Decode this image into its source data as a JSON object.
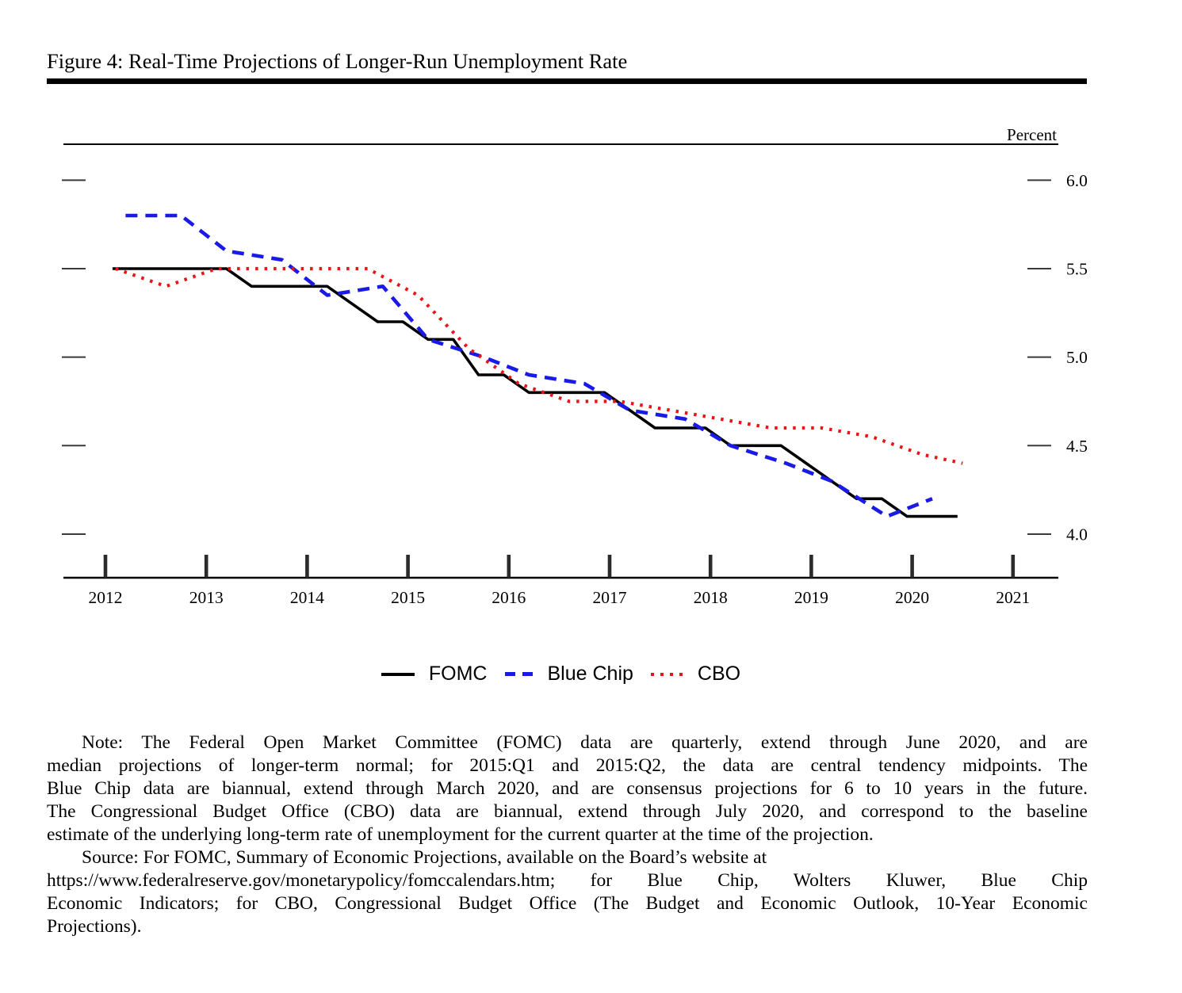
{
  "figure": {
    "title": "Figure 4: Real-Time Projections of Longer-Run Unemployment Rate"
  },
  "chart_data": {
    "type": "line",
    "title": "Real-Time Projections of Longer-Run Unemployment Rate",
    "ylabel": "Percent",
    "grid": false,
    "legend_position": "bottom-center",
    "x_axis": {
      "ticks": [
        2012,
        2013,
        2014,
        2015,
        2016,
        2017,
        2018,
        2019,
        2020,
        2021
      ],
      "range_shown": [
        2011.58,
        2021.45
      ]
    },
    "y_axis": {
      "label": "Percent",
      "ticks": [
        6.0,
        5.5,
        5.0,
        4.5,
        4.0
      ],
      "range_shown": [
        3.75,
        6.2
      ]
    },
    "series": [
      {
        "name": "FOMC",
        "style": "solid",
        "color": "#000000",
        "frequency": "quarterly",
        "points": [
          [
            2012.07,
            5.5
          ],
          [
            2012.3,
            5.5
          ],
          [
            2012.45,
            5.5
          ],
          [
            2012.7,
            5.5
          ],
          [
            2012.95,
            5.5
          ],
          [
            2013.2,
            5.5
          ],
          [
            2013.45,
            5.4
          ],
          [
            2013.7,
            5.4
          ],
          [
            2013.95,
            5.4
          ],
          [
            2014.2,
            5.4
          ],
          [
            2014.45,
            5.3
          ],
          [
            2014.7,
            5.2
          ],
          [
            2014.95,
            5.2
          ],
          [
            2015.2,
            5.1
          ],
          [
            2015.45,
            5.1
          ],
          [
            2015.7,
            4.9
          ],
          [
            2015.95,
            4.9
          ],
          [
            2016.2,
            4.8
          ],
          [
            2016.45,
            4.8
          ],
          [
            2016.7,
            4.8
          ],
          [
            2016.95,
            4.8
          ],
          [
            2017.2,
            4.7
          ],
          [
            2017.45,
            4.6
          ],
          [
            2017.7,
            4.6
          ],
          [
            2017.95,
            4.6
          ],
          [
            2018.2,
            4.5
          ],
          [
            2018.45,
            4.5
          ],
          [
            2018.7,
            4.5
          ],
          [
            2018.95,
            4.4
          ],
          [
            2019.2,
            4.3
          ],
          [
            2019.45,
            4.2
          ],
          [
            2019.7,
            4.2
          ],
          [
            2019.95,
            4.1
          ],
          [
            2020.45,
            4.1
          ]
        ]
      },
      {
        "name": "Blue Chip",
        "style": "dashed",
        "color": "#1a1ae6",
        "frequency": "biannual",
        "points": [
          [
            2012.2,
            5.8
          ],
          [
            2012.75,
            5.8
          ],
          [
            2013.2,
            5.6
          ],
          [
            2013.75,
            5.55
          ],
          [
            2014.2,
            5.35
          ],
          [
            2014.75,
            5.4
          ],
          [
            2015.2,
            5.1
          ],
          [
            2015.75,
            5.0
          ],
          [
            2016.2,
            4.9
          ],
          [
            2016.75,
            4.85
          ],
          [
            2017.2,
            4.7
          ],
          [
            2017.75,
            4.65
          ],
          [
            2018.2,
            4.5
          ],
          [
            2018.75,
            4.4
          ],
          [
            2019.2,
            4.3
          ],
          [
            2019.75,
            4.1
          ],
          [
            2020.2,
            4.2
          ]
        ]
      },
      {
        "name": "CBO",
        "style": "dotted",
        "color": "#eb1414",
        "frequency": "biannual",
        "points": [
          [
            2012.1,
            5.5
          ],
          [
            2012.6,
            5.4
          ],
          [
            2013.1,
            5.5
          ],
          [
            2013.6,
            5.5
          ],
          [
            2014.1,
            5.5
          ],
          [
            2014.6,
            5.5
          ],
          [
            2015.1,
            5.35
          ],
          [
            2015.6,
            5.05
          ],
          [
            2016.1,
            4.85
          ],
          [
            2016.6,
            4.75
          ],
          [
            2017.1,
            4.75
          ],
          [
            2017.6,
            4.7
          ],
          [
            2018.1,
            4.65
          ],
          [
            2018.6,
            4.6
          ],
          [
            2019.1,
            4.6
          ],
          [
            2019.6,
            4.55
          ],
          [
            2020.1,
            4.45
          ],
          [
            2020.5,
            4.4
          ]
        ]
      }
    ]
  },
  "legend": {
    "items": [
      {
        "label": "FOMC"
      },
      {
        "label": "Blue Chip"
      },
      {
        "label": "CBO"
      }
    ]
  },
  "notes": {
    "lines": [
      {
        "text": "Note: The Federal Open Market Committee (FOMC) data are quarterly, extend through June 2020, and are",
        "indent": true,
        "justify": true
      },
      {
        "text": "median projections of longer-term normal; for 2015:Q1 and 2015:Q2, the data are central tendency midpoints. The",
        "indent": false,
        "justify": true
      },
      {
        "text": "Blue Chip data are biannual, extend through March 2020, and are consensus projections for 6 to 10 years in the future.",
        "indent": false,
        "justify": true
      },
      {
        "text": "The Congressional Budget Office (CBO) data are biannual, extend through July 2020, and correspond to the baseline",
        "indent": false,
        "justify": true
      },
      {
        "text": "estimate of the underlying long-term rate of unemployment for the current quarter at the time of the projection.",
        "indent": false,
        "justify": false
      },
      {
        "text": "Source: For FOMC, Summary of Economic Projections, available on the Board’s website at",
        "indent": true,
        "justify": false
      },
      {
        "text": "https://www.federalreserve.gov/monetarypolicy/fomccalendars.htm; for Blue Chip, Wolters Kluwer, Blue Chip",
        "indent": false,
        "justify": true
      },
      {
        "text": "Economic Indicators; for CBO, Congressional Budget Office (The Budget and Economic Outlook, 10-Year Economic",
        "indent": false,
        "justify": true
      },
      {
        "text": "Projections).",
        "indent": false,
        "justify": false
      }
    ]
  }
}
